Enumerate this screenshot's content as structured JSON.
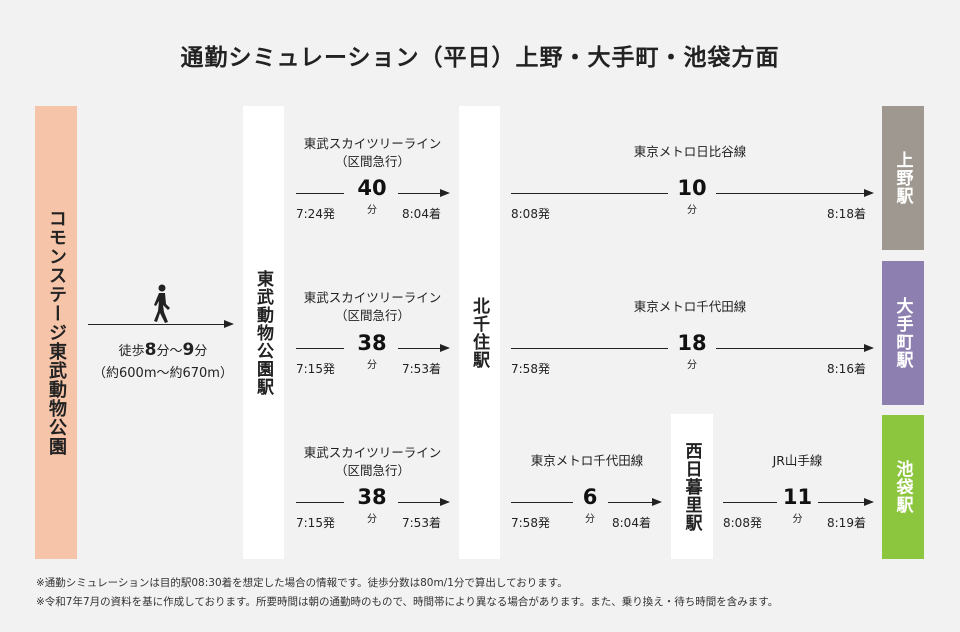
{
  "title": "通勤シミュレーション（平日）上野・大手町・池袋方面",
  "origin": "コモンステージ東武動物公園",
  "walk": {
    "prefix": "徒歩",
    "min_from": "8",
    "unit1": "分",
    "tilde": "～",
    "min_to": "9",
    "unit2": "分",
    "distance": "（約600m～約670m）"
  },
  "stations": {
    "tobu": "東武動物公園駅",
    "kitasenju": "北千住駅",
    "nishinippori": "西日暮里駅"
  },
  "destinations": {
    "ueno": "上野駅",
    "otemachi": "大手町駅",
    "ikebukuro": "池袋駅"
  },
  "colors": {
    "origin": "#f6c4a8",
    "ueno": "#9e9890",
    "otemachi": "#8e7fb1",
    "ikebukuro": "#8cc63f"
  },
  "rows": [
    {
      "leg1": {
        "line1": "東武スカイツリーライン",
        "line2": "（区間急行）",
        "minutes": "40",
        "unit": "分",
        "dep": "7:24発",
        "arr": "8:04着"
      },
      "leg2": {
        "line": "東京メトロ日比谷線",
        "minutes": "10",
        "unit": "分",
        "dep": "8:08発",
        "arr": "8:18着"
      }
    },
    {
      "leg1": {
        "line1": "東武スカイツリーライン",
        "line2": "（区間急行）",
        "minutes": "38",
        "unit": "分",
        "dep": "7:15発",
        "arr": "7:53着"
      },
      "leg2": {
        "line": "東京メトロ千代田線",
        "minutes": "18",
        "unit": "分",
        "dep": "7:58発",
        "arr": "8:16着"
      }
    },
    {
      "leg1": {
        "line1": "東武スカイツリーライン",
        "line2": "（区間急行）",
        "minutes": "38",
        "unit": "分",
        "dep": "7:15発",
        "arr": "7:53着"
      },
      "leg2": {
        "line": "東京メトロ千代田線",
        "minutes": "6",
        "unit": "分",
        "dep": "7:58発",
        "arr": "8:04着"
      },
      "leg3": {
        "line": "JR山手線",
        "minutes": "11",
        "unit": "分",
        "dep": "8:08発",
        "arr": "8:19着"
      }
    }
  ],
  "notes": [
    "※通勤シミュレーションは目的駅08:30着を想定した場合の情報です。徒歩分数は80m/1分で算出しております。",
    "※令和7年7月の資料を基に作成しております。所要時間は朝の通勤時のもので、時間帯により異なる場合があります。また、乗り換え・待ち時間を含みます。"
  ]
}
